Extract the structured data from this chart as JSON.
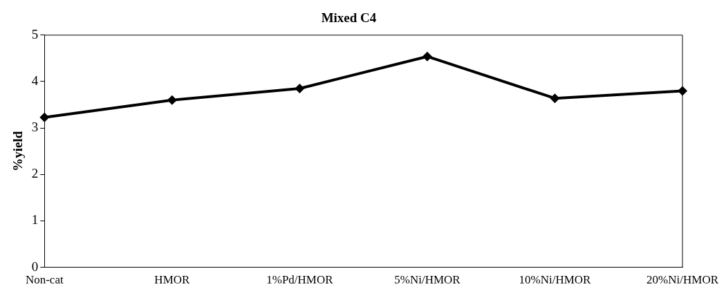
{
  "chart_data": {
    "type": "line",
    "title": "Mixed C4",
    "ylabel": "%yield",
    "categories": [
      "Non-cat",
      "HMOR",
      "1%Pd/HMOR",
      "5%Ni/HMOR",
      "10%Ni/HMOR",
      "20%Ni/HMOR"
    ],
    "series": [
      {
        "color": "#000000",
        "values": [
          3.23,
          3.6,
          3.85,
          4.54,
          3.64,
          3.8
        ]
      }
    ],
    "ylim": [
      0,
      5
    ],
    "yticks": [
      0,
      1,
      2,
      3,
      4,
      5
    ],
    "grid": false,
    "legend": false,
    "marker": "diamond",
    "line_style": "solid"
  }
}
